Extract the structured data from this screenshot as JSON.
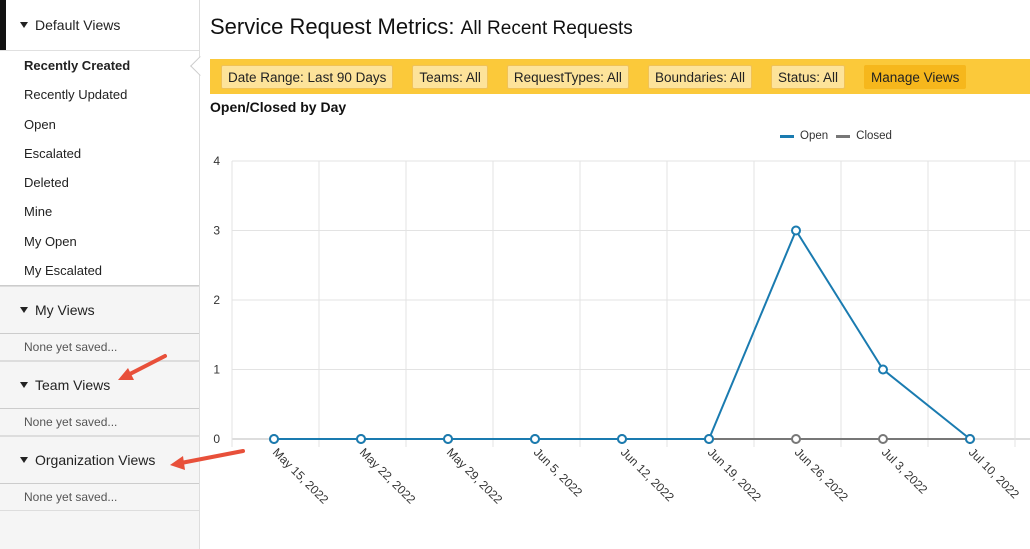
{
  "sidebar": {
    "default_views": {
      "title": "Default Views",
      "items": [
        {
          "label": "Recently Created",
          "active": true
        },
        {
          "label": "Recently Updated"
        },
        {
          "label": "Open"
        },
        {
          "label": "Escalated"
        },
        {
          "label": "Deleted"
        },
        {
          "label": "Mine"
        },
        {
          "label": "My Open"
        },
        {
          "label": "My Escalated"
        }
      ]
    },
    "my_views": {
      "title": "My Views",
      "empty": "None yet saved..."
    },
    "team_views": {
      "title": "Team Views",
      "empty": "None yet saved..."
    },
    "org_views": {
      "title": "Organization Views",
      "empty": "None yet saved..."
    }
  },
  "header": {
    "title": "Service Request Metrics:",
    "subtitle": "All Recent Requests"
  },
  "filters": [
    {
      "label": "Date Range: Last 90 Days"
    },
    {
      "label": "Teams: All"
    },
    {
      "label": "RequestTypes: All"
    },
    {
      "label": "Boundaries: All"
    },
    {
      "label": "Status: All"
    },
    {
      "label": "Manage Views",
      "accent": true
    }
  ],
  "chart_data": {
    "type": "line",
    "title": "Open/Closed by Day",
    "categories": [
      "May 15, 2022",
      "May 22, 2022",
      "May 29, 2022",
      "Jun 5, 2022",
      "Jun 12, 2022",
      "Jun 19, 2022",
      "Jun 26, 2022",
      "Jul 3, 2022",
      "Jul 10, 2022"
    ],
    "series": [
      {
        "name": "Open",
        "color": "#1a7bb0",
        "values": [
          0,
          0,
          0,
          0,
          0,
          0,
          3,
          1,
          0
        ]
      },
      {
        "name": "Closed",
        "color": "#777777",
        "values": [
          0,
          0,
          0,
          0,
          0,
          0,
          0,
          0,
          0
        ]
      }
    ],
    "ylim": [
      0,
      4
    ],
    "yticks": [
      "0",
      "1",
      "2",
      "3",
      "4"
    ],
    "grid": true,
    "legend_position": "top-right"
  },
  "colors": {
    "accent": "#fbc93a",
    "annotation_arrow": "#e8503a"
  }
}
